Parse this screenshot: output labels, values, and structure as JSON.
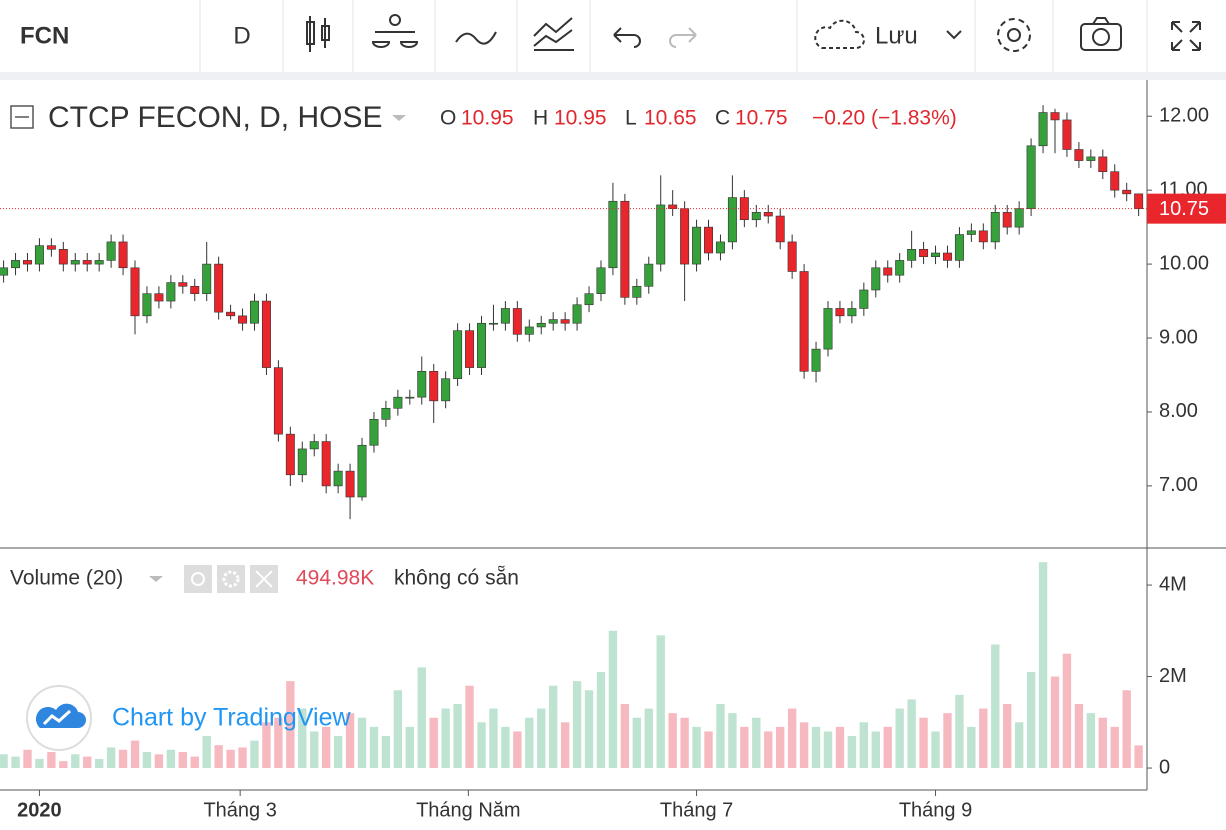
{
  "toolbar": {
    "symbol": "FCN",
    "interval": "D",
    "save": "Lưu"
  },
  "watermark": "Chart by TradingView",
  "chart_data": [
    {
      "type": "candlestick",
      "title": "CTCP FECON, D, HOSE",
      "legend_keys": [
        "O",
        "H",
        "L",
        "C"
      ],
      "change_label": "−0.20 (−1.83%)",
      "up_color": "#36a03a",
      "down_color": "#e8262c",
      "open": [
        9.85,
        9.95,
        10.05,
        10.0,
        10.25,
        10.2,
        10.0,
        10.05,
        10.0,
        10.05,
        10.3,
        9.95,
        9.3,
        9.6,
        9.5,
        9.75,
        9.7,
        9.6,
        10.0,
        9.35,
        9.3,
        9.2,
        9.5,
        8.6,
        7.7,
        7.15,
        7.5,
        7.6,
        7.0,
        7.2,
        6.85,
        7.55,
        7.9,
        8.05,
        8.2,
        8.2,
        8.55,
        8.15,
        8.45,
        9.1,
        8.6,
        9.2,
        9.2,
        9.4,
        9.05,
        9.15,
        9.2,
        9.25,
        9.2,
        9.45,
        9.6,
        9.95,
        10.85,
        9.55,
        9.7,
        10.0,
        10.8,
        10.75,
        10.0,
        10.5,
        10.15,
        10.3,
        10.9,
        10.6,
        10.7,
        10.65,
        10.3,
        9.9,
        8.55,
        8.85,
        9.4,
        9.3,
        9.4,
        9.65,
        9.95,
        9.85,
        10.05,
        10.2,
        10.1,
        10.15,
        10.05,
        10.4,
        10.45,
        10.3,
        10.7,
        10.5,
        10.75,
        11.6,
        12.05,
        11.95,
        11.55,
        11.4,
        11.45,
        11.25,
        11.0,
        10.95
      ],
      "high": [
        10.05,
        10.15,
        10.15,
        10.35,
        10.35,
        10.3,
        10.15,
        10.15,
        10.15,
        10.4,
        10.4,
        10.05,
        9.7,
        9.7,
        9.85,
        9.85,
        9.8,
        10.3,
        10.1,
        9.45,
        9.4,
        9.6,
        9.6,
        8.7,
        7.8,
        7.6,
        7.7,
        7.7,
        7.3,
        7.3,
        7.65,
        8.0,
        8.15,
        8.3,
        8.3,
        8.75,
        8.65,
        8.55,
        9.2,
        9.2,
        9.3,
        9.45,
        9.5,
        9.5,
        9.25,
        9.3,
        9.35,
        9.35,
        9.55,
        9.7,
        10.05,
        11.1,
        10.95,
        9.8,
        10.1,
        11.2,
        11.0,
        10.85,
        10.6,
        10.6,
        10.4,
        11.2,
        11.0,
        10.8,
        10.8,
        10.75,
        10.4,
        10.0,
        8.95,
        9.5,
        9.5,
        9.5,
        9.75,
        10.05,
        10.05,
        10.15,
        10.45,
        10.3,
        10.25,
        10.25,
        10.5,
        10.55,
        10.55,
        10.8,
        10.8,
        10.85,
        11.7,
        12.15,
        12.1,
        12.05,
        11.65,
        11.55,
        11.55,
        11.35,
        11.1,
        10.95
      ],
      "low": [
        9.75,
        9.85,
        9.9,
        9.9,
        10.1,
        9.9,
        9.9,
        9.9,
        9.9,
        9.95,
        9.85,
        9.05,
        9.2,
        9.4,
        9.4,
        9.6,
        9.5,
        9.5,
        9.25,
        9.25,
        9.1,
        9.1,
        8.5,
        7.6,
        7.0,
        7.05,
        7.4,
        6.9,
        6.9,
        6.55,
        6.8,
        7.45,
        7.8,
        7.95,
        8.1,
        8.1,
        7.85,
        8.05,
        8.35,
        8.5,
        8.5,
        9.1,
        9.1,
        8.95,
        8.95,
        9.05,
        9.1,
        9.1,
        9.1,
        9.35,
        9.5,
        9.85,
        9.45,
        9.45,
        9.6,
        9.9,
        10.65,
        9.5,
        9.9,
        10.05,
        10.05,
        10.2,
        10.5,
        10.5,
        10.55,
        10.2,
        9.8,
        8.45,
        8.4,
        8.75,
        9.2,
        9.2,
        9.3,
        9.55,
        9.75,
        9.75,
        9.95,
        10.0,
        10.0,
        9.95,
        9.95,
        10.3,
        10.2,
        10.2,
        10.4,
        10.4,
        10.65,
        11.5,
        11.5,
        11.45,
        11.3,
        11.3,
        11.15,
        10.9,
        10.85,
        10.65
      ],
      "close": [
        9.95,
        10.05,
        10.0,
        10.25,
        10.2,
        10.0,
        10.05,
        10.0,
        10.05,
        10.3,
        9.95,
        9.3,
        9.6,
        9.5,
        9.75,
        9.7,
        9.6,
        10.0,
        9.35,
        9.3,
        9.2,
        9.5,
        8.6,
        7.7,
        7.15,
        7.5,
        7.6,
        7.0,
        7.2,
        6.85,
        7.55,
        7.9,
        8.05,
        8.2,
        8.2,
        8.55,
        8.15,
        8.45,
        9.1,
        8.6,
        9.2,
        9.2,
        9.4,
        9.05,
        9.15,
        9.2,
        9.25,
        9.2,
        9.45,
        9.6,
        9.95,
        10.85,
        9.55,
        9.7,
        10.0,
        10.8,
        10.75,
        10.0,
        10.5,
        10.15,
        10.3,
        10.9,
        10.6,
        10.7,
        10.65,
        10.3,
        9.9,
        8.55,
        8.85,
        9.4,
        9.3,
        9.4,
        9.65,
        9.95,
        9.85,
        10.05,
        10.2,
        10.1,
        10.15,
        10.05,
        10.4,
        10.45,
        10.3,
        10.7,
        10.5,
        10.75,
        11.6,
        12.05,
        11.95,
        11.55,
        11.4,
        11.45,
        11.25,
        11.0,
        10.95,
        10.75
      ],
      "ylim": [
        6.16,
        12.49
      ],
      "yticks": [
        {
          "value": 7,
          "label": "7.00"
        },
        {
          "value": 8,
          "label": "8.00"
        },
        {
          "value": 9,
          "label": "9.00"
        },
        {
          "value": 10,
          "label": "10.00"
        },
        {
          "value": 11,
          "label": "11.00"
        },
        {
          "value": 12,
          "label": "12.00"
        }
      ],
      "xlim": [
        -0.3,
        95.7
      ],
      "xticks": [
        {
          "value": 3,
          "label": "2020"
        },
        {
          "value": 19.8,
          "label": "Tháng 3"
        },
        {
          "value": 38.9,
          "label": "Tháng Năm"
        },
        {
          "value": 58,
          "label": "Tháng 7"
        },
        {
          "value": 78,
          "label": "Tháng 9"
        }
      ]
    },
    {
      "type": "bar",
      "title": "Volume (20)",
      "last_value_label": "494.98K",
      "status": "không có sẵn",
      "up_color": "#bfe3d1",
      "down_color": "#f7b9c0",
      "values": [
        300000,
        250000,
        400000,
        200000,
        350000,
        150000,
        300000,
        250000,
        200000,
        450000,
        400000,
        600000,
        350000,
        300000,
        400000,
        350000,
        250000,
        700000,
        500000,
        400000,
        450000,
        600000,
        1000000,
        1100000,
        1900000,
        1300000,
        800000,
        900000,
        700000,
        1200000,
        1100000,
        900000,
        700000,
        1700000,
        900000,
        2200000,
        1100000,
        1300000,
        1400000,
        1800000,
        1000000,
        1300000,
        900000,
        800000,
        1100000,
        1300000,
        1800000,
        1000000,
        1900000,
        1700000,
        2100000,
        3000000,
        1400000,
        1100000,
        1300000,
        2900000,
        1200000,
        1100000,
        900000,
        800000,
        1400000,
        1200000,
        900000,
        1100000,
        800000,
        900000,
        1300000,
        1000000,
        900000,
        800000,
        900000,
        700000,
        1000000,
        800000,
        900000,
        1300000,
        1500000,
        1100000,
        800000,
        1200000,
        1600000,
        900000,
        1300000,
        2700000,
        1400000,
        1000000,
        2100000,
        4500000,
        2000000,
        2500000,
        1400000,
        1200000,
        1100000,
        900000,
        1700000,
        494980
      ],
      "ylim": [
        -480000,
        4810000
      ],
      "yticks": [
        0,
        {
          "value": 2000000,
          "label": "2M"
        },
        {
          "value": 4000000,
          "label": "4M"
        }
      ]
    }
  ]
}
